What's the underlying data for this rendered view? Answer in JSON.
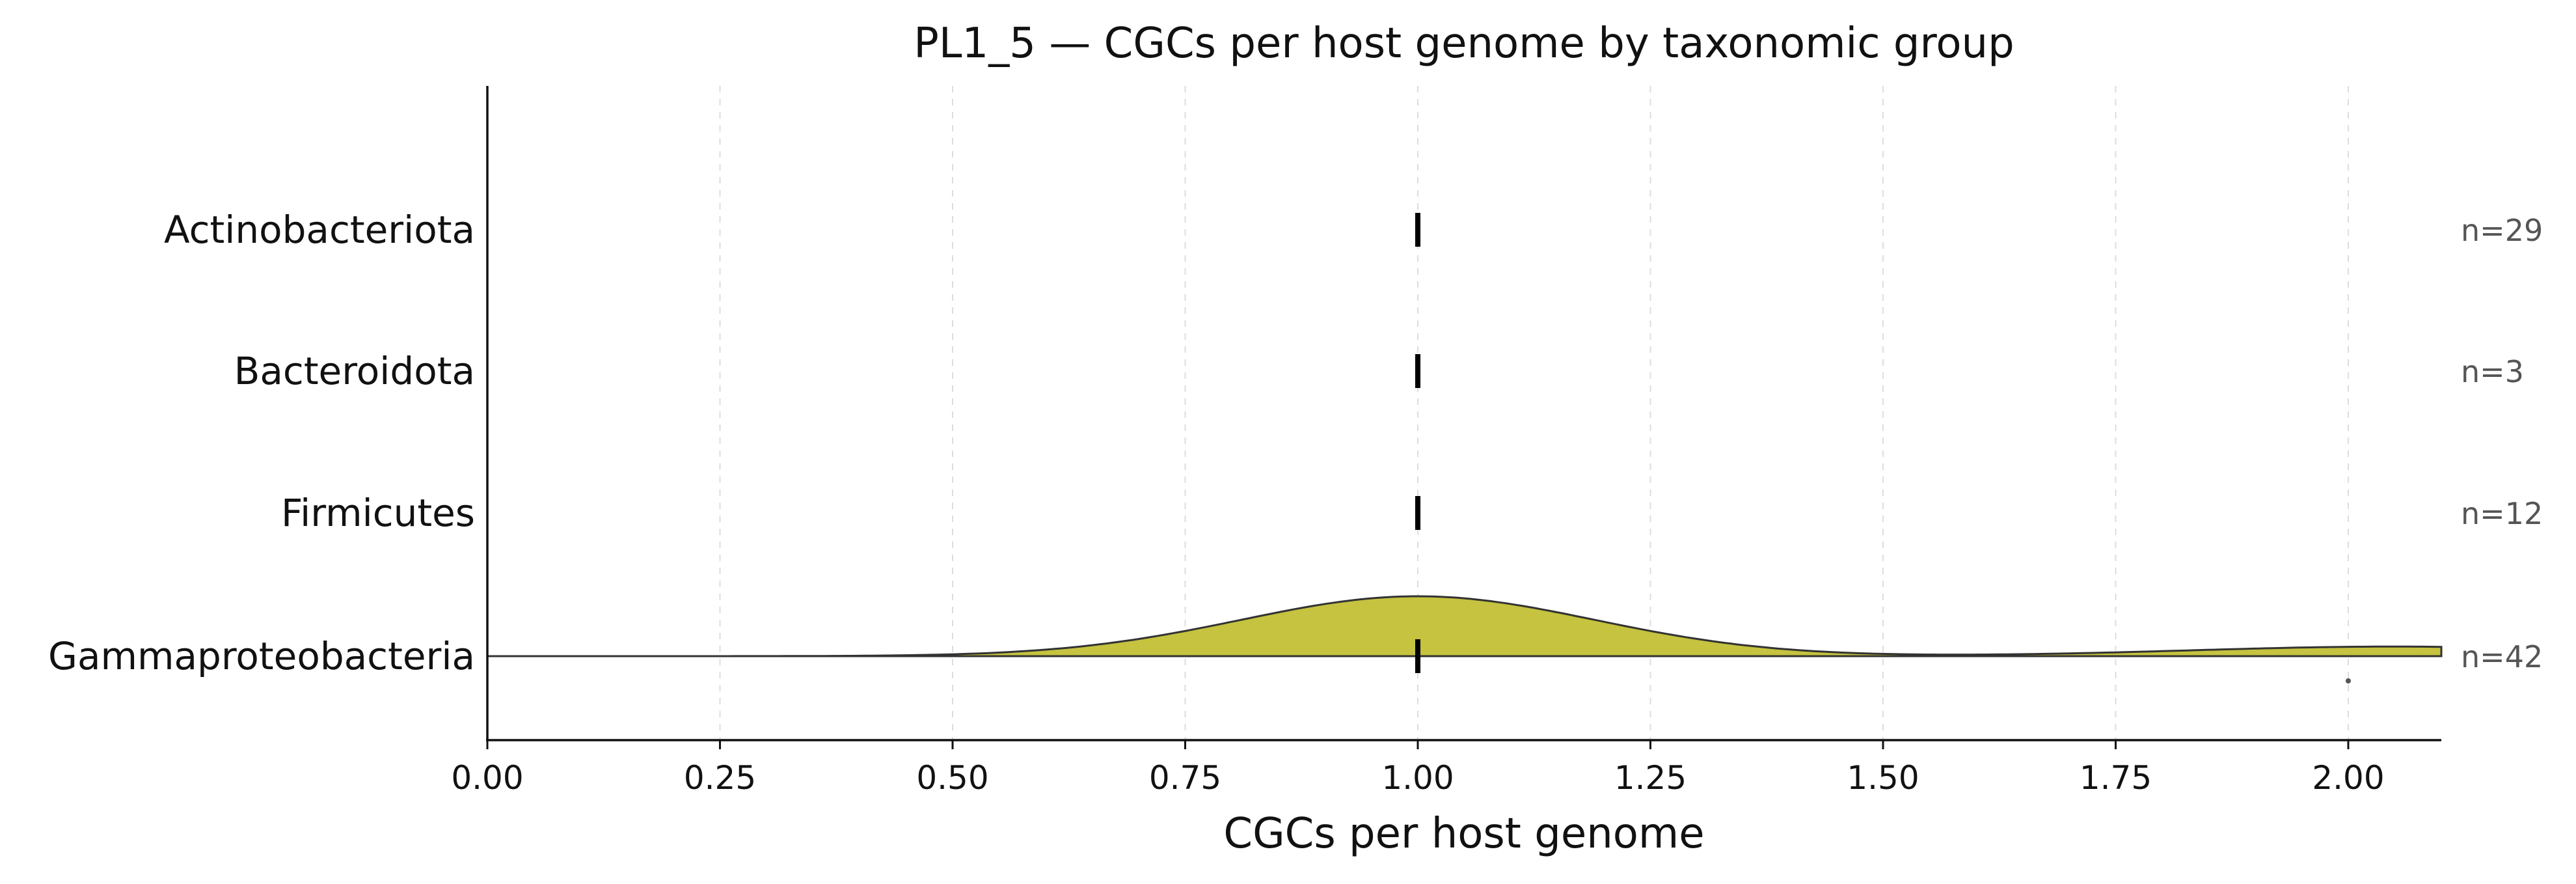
{
  "chart_data": {
    "type": "area",
    "title": "PL1_5 — CGCs per host genome by taxonomic group",
    "xlabel": "CGCs per host genome",
    "ylabel": "",
    "xlim": [
      0,
      2.1
    ],
    "xticks": [
      0.0,
      0.25,
      0.5,
      0.75,
      1.0,
      1.25,
      1.5,
      1.75,
      2.0
    ],
    "xtick_labels": [
      "0.00",
      "0.25",
      "0.50",
      "0.75",
      "1.00",
      "1.25",
      "1.50",
      "1.75",
      "2.00"
    ],
    "grid": "vertical dashed",
    "groups": [
      {
        "name": "Actinobacteriota",
        "n_label": "n=29",
        "median": 1.0,
        "density": false
      },
      {
        "name": "Bacteroidota",
        "n_label": "n=3",
        "median": 1.0,
        "density": false
      },
      {
        "name": "Firmicutes",
        "n_label": "n=12",
        "median": 1.0,
        "density": false
      },
      {
        "name": "Gammaproteobacteria",
        "n_label": "n=42",
        "median": 1.0,
        "density": true,
        "density_color": "#c5c33f",
        "outliers": [
          2.0
        ],
        "density_components": [
          {
            "mean": 1.0,
            "sd": 0.19,
            "peak": 1.0
          },
          {
            "mean": 2.05,
            "sd": 0.22,
            "peak": 0.16
          }
        ]
      }
    ]
  }
}
